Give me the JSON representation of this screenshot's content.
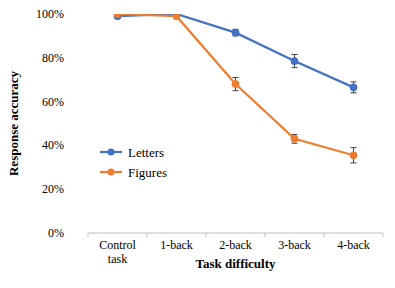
{
  "chart_data": {
    "type": "line",
    "x_label": "Task difficulty",
    "y_label": "Response accuracy",
    "categories": [
      "Control task",
      "1-back",
      "2-back",
      "3-back",
      "4-back"
    ],
    "series": [
      {
        "name": "Letters",
        "color": "#4472c4",
        "marker": "circle",
        "values": [
          99,
          100,
          91.5,
          78.5,
          66.5
        ],
        "errors": [
          1,
          0.5,
          1.5,
          3,
          2.5
        ]
      },
      {
        "name": "Figures",
        "color": "#ed7d31",
        "marker": "circle",
        "values": [
          100,
          99,
          68,
          43,
          35.5
        ],
        "errors": [
          0.5,
          1,
          3,
          2,
          3.5
        ]
      }
    ],
    "ylim": [
      0,
      100
    ],
    "yticks": [
      {
        "value": 0,
        "label": "0%"
      },
      {
        "value": 20,
        "label": "20%"
      },
      {
        "value": 40,
        "label": "40%"
      },
      {
        "value": 60,
        "label": "60%"
      },
      {
        "value": 80,
        "label": "80%"
      },
      {
        "value": 100,
        "label": "100%"
      }
    ],
    "grid": false,
    "legend": "left"
  }
}
